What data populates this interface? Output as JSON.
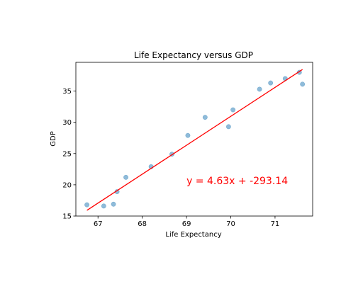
{
  "chart_data": {
    "type": "scatter",
    "title": "Life Expectancy versus GDP",
    "xlabel": "Life Expectancy",
    "ylabel": "GDP",
    "xlim": [
      66.5,
      71.85
    ],
    "ylim": [
      15,
      39.6
    ],
    "x_ticks": [
      "67",
      "68",
      "69",
      "70",
      "71"
    ],
    "y_ticks": [
      "15",
      "20",
      "25",
      "30",
      "35"
    ],
    "grid": false,
    "points": [
      {
        "x": 66.75,
        "y": 16.8
      },
      {
        "x": 67.13,
        "y": 16.6
      },
      {
        "x": 67.35,
        "y": 16.9
      },
      {
        "x": 67.43,
        "y": 18.9
      },
      {
        "x": 67.63,
        "y": 21.2
      },
      {
        "x": 68.2,
        "y": 22.9
      },
      {
        "x": 68.67,
        "y": 24.9
      },
      {
        "x": 69.03,
        "y": 27.9
      },
      {
        "x": 69.42,
        "y": 30.8
      },
      {
        "x": 69.95,
        "y": 29.3
      },
      {
        "x": 70.05,
        "y": 32.0
      },
      {
        "x": 70.65,
        "y": 35.3
      },
      {
        "x": 70.9,
        "y": 36.3
      },
      {
        "x": 71.23,
        "y": 37.0
      },
      {
        "x": 71.55,
        "y": 38.0
      },
      {
        "x": 71.62,
        "y": 36.1
      }
    ],
    "regression": {
      "slope": 4.63,
      "intercept": -293.14,
      "x_range": [
        66.75,
        71.62
      ]
    },
    "annotation": {
      "text": "y = 4.63x + -293.14",
      "x": 69.0,
      "y": 20.1
    },
    "colors": {
      "points": "#1f77b4",
      "line": "#ff0000",
      "annotation": "#ff0000"
    }
  }
}
